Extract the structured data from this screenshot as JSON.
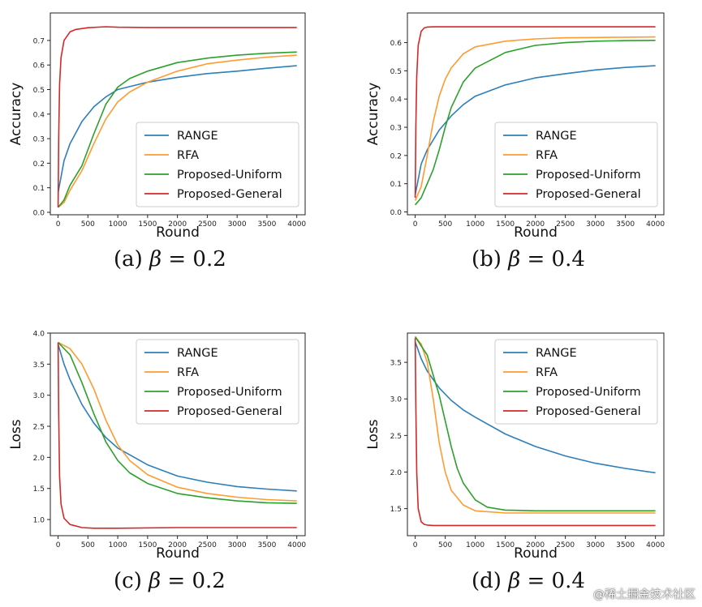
{
  "figure": {
    "watermark": "@稀土掘金技术社区",
    "colors": {
      "RANGE": "#2c7fb8",
      "RFA": "#ff9b30",
      "Proposed-Uniform": "#2ca02c",
      "Proposed-General": "#d62728"
    }
  },
  "chart_data": [
    {
      "id": "a",
      "type": "line",
      "caption": {
        "prefix": "(a)",
        "symbol": "β",
        "rest": " = 0.2"
      },
      "xlabel": "Round",
      "ylabel": "Accuracy",
      "xlim": [
        -130,
        4140
      ],
      "ylim": [
        -0.01,
        0.812
      ],
      "xticks": [
        0,
        500,
        1000,
        1500,
        2000,
        2500,
        3000,
        3500,
        4000
      ],
      "yticks": [
        0.0,
        0.1,
        0.2,
        0.3,
        0.4,
        0.5,
        0.6,
        0.7
      ],
      "ytick_labels": [
        "0.0",
        "0.1",
        "0.2",
        "0.3",
        "0.4",
        "0.5",
        "0.6",
        "0.7"
      ],
      "legend": "lower-right",
      "series": [
        {
          "name": "RANGE",
          "x": [
            0,
            100,
            200,
            400,
            600,
            800,
            1000,
            1500,
            2000,
            2500,
            3000,
            3500,
            4000
          ],
          "y": [
            0.08,
            0.21,
            0.28,
            0.37,
            0.43,
            0.47,
            0.5,
            0.53,
            0.55,
            0.565,
            0.575,
            0.587,
            0.597
          ]
        },
        {
          "name": "RFA",
          "x": [
            0,
            100,
            200,
            400,
            600,
            800,
            1000,
            1200,
            1500,
            2000,
            2500,
            3000,
            3500,
            4000
          ],
          "y": [
            0.02,
            0.04,
            0.09,
            0.17,
            0.28,
            0.38,
            0.45,
            0.49,
            0.53,
            0.575,
            0.605,
            0.62,
            0.632,
            0.64
          ]
        },
        {
          "name": "Proposed-Uniform",
          "x": [
            0,
            100,
            200,
            400,
            600,
            800,
            1000,
            1200,
            1500,
            2000,
            2500,
            3000,
            3500,
            4000
          ],
          "y": [
            0.02,
            0.05,
            0.11,
            0.19,
            0.32,
            0.44,
            0.51,
            0.545,
            0.575,
            0.61,
            0.628,
            0.64,
            0.648,
            0.653
          ]
        },
        {
          "name": "Proposed-General",
          "x": [
            0,
            10,
            25,
            50,
            100,
            200,
            300,
            500,
            800,
            1000,
            1500,
            2000,
            2500,
            3000,
            3500,
            4000
          ],
          "y": [
            0.02,
            0.3,
            0.52,
            0.63,
            0.7,
            0.735,
            0.745,
            0.752,
            0.756,
            0.754,
            0.753,
            0.753,
            0.753,
            0.753,
            0.753,
            0.753
          ]
        }
      ]
    },
    {
      "id": "b",
      "type": "line",
      "caption": {
        "prefix": "(b)",
        "symbol": "β",
        "rest": " = 0.4"
      },
      "xlabel": "Round",
      "ylabel": "Accuracy",
      "xlim": [
        -130,
        4140
      ],
      "ylim": [
        -0.01,
        0.705
      ],
      "xticks": [
        0,
        500,
        1000,
        1500,
        2000,
        2500,
        3000,
        3500,
        4000
      ],
      "yticks": [
        0.0,
        0.1,
        0.2,
        0.3,
        0.4,
        0.5,
        0.6
      ],
      "ytick_labels": [
        "0.0",
        "0.1",
        "0.2",
        "0.3",
        "0.4",
        "0.5",
        "0.6"
      ],
      "legend": "lower-right",
      "series": [
        {
          "name": "RANGE",
          "x": [
            0,
            100,
            200,
            400,
            600,
            800,
            1000,
            1500,
            2000,
            2500,
            3000,
            3500,
            4000
          ],
          "y": [
            0.06,
            0.17,
            0.22,
            0.29,
            0.34,
            0.38,
            0.41,
            0.45,
            0.475,
            0.49,
            0.503,
            0.512,
            0.518
          ]
        },
        {
          "name": "RFA",
          "x": [
            0,
            100,
            200,
            300,
            400,
            500,
            600,
            800,
            1000,
            1500,
            2000,
            2500,
            3000,
            3500,
            4000
          ],
          "y": [
            0.04,
            0.09,
            0.2,
            0.32,
            0.41,
            0.47,
            0.51,
            0.56,
            0.585,
            0.605,
            0.613,
            0.617,
            0.618,
            0.619,
            0.62
          ]
        },
        {
          "name": "Proposed-Uniform",
          "x": [
            0,
            100,
            200,
            300,
            400,
            500,
            600,
            800,
            1000,
            1500,
            2000,
            2500,
            3000,
            3500,
            4000
          ],
          "y": [
            0.025,
            0.05,
            0.1,
            0.15,
            0.22,
            0.3,
            0.37,
            0.46,
            0.51,
            0.565,
            0.59,
            0.6,
            0.605,
            0.607,
            0.608
          ]
        },
        {
          "name": "Proposed-General",
          "x": [
            0,
            10,
            25,
            50,
            100,
            150,
            200,
            300,
            500,
            1000,
            1500,
            2000,
            2500,
            3000,
            3500,
            4000
          ],
          "y": [
            0.05,
            0.3,
            0.48,
            0.59,
            0.64,
            0.652,
            0.655,
            0.656,
            0.656,
            0.656,
            0.656,
            0.656,
            0.656,
            0.656,
            0.656,
            0.656
          ]
        }
      ]
    },
    {
      "id": "c",
      "type": "line",
      "caption": {
        "prefix": "(c)",
        "symbol": "β",
        "rest": " = 0.2"
      },
      "xlabel": "Round",
      "ylabel": "Loss",
      "xlim": [
        -130,
        4140
      ],
      "ylim": [
        0.74,
        4.0
      ],
      "xticks": [
        0,
        500,
        1000,
        1500,
        2000,
        2500,
        3000,
        3500,
        4000
      ],
      "yticks": [
        1.0,
        1.5,
        2.0,
        2.5,
        3.0,
        3.5,
        4.0
      ],
      "ytick_labels": [
        "1.0",
        "1.5",
        "2.0",
        "2.5",
        "3.0",
        "3.5",
        "4.0"
      ],
      "legend": "upper-right",
      "series": [
        {
          "name": "RANGE",
          "x": [
            0,
            100,
            200,
            400,
            600,
            800,
            1000,
            1500,
            2000,
            2500,
            3000,
            3500,
            4000
          ],
          "y": [
            3.82,
            3.5,
            3.25,
            2.85,
            2.55,
            2.32,
            2.15,
            1.88,
            1.7,
            1.6,
            1.53,
            1.49,
            1.46
          ]
        },
        {
          "name": "RFA",
          "x": [
            0,
            200,
            400,
            600,
            800,
            1000,
            1200,
            1500,
            2000,
            2500,
            3000,
            3500,
            4000
          ],
          "y": [
            3.85,
            3.75,
            3.5,
            3.1,
            2.6,
            2.2,
            1.95,
            1.72,
            1.52,
            1.42,
            1.36,
            1.32,
            1.3
          ]
        },
        {
          "name": "Proposed-Uniform",
          "x": [
            0,
            200,
            400,
            600,
            800,
            1000,
            1200,
            1500,
            2000,
            2500,
            3000,
            3500,
            4000
          ],
          "y": [
            3.85,
            3.65,
            3.2,
            2.7,
            2.25,
            1.95,
            1.75,
            1.58,
            1.42,
            1.35,
            1.3,
            1.27,
            1.26
          ]
        },
        {
          "name": "Proposed-General",
          "x": [
            0,
            10,
            25,
            50,
            100,
            200,
            400,
            600,
            1000,
            2000,
            3000,
            4000
          ],
          "y": [
            3.85,
            2.7,
            1.7,
            1.25,
            1.02,
            0.92,
            0.87,
            0.86,
            0.86,
            0.87,
            0.87,
            0.87
          ]
        }
      ]
    },
    {
      "id": "d",
      "type": "line",
      "caption": {
        "prefix": "(d)",
        "symbol": "β",
        "rest": " = 0.4"
      },
      "xlabel": "Round",
      "ylabel": "Loss",
      "xlim": [
        -130,
        4140
      ],
      "ylim": [
        1.13,
        3.9
      ],
      "xticks": [
        0,
        500,
        1000,
        1500,
        2000,
        2500,
        3000,
        3500,
        4000
      ],
      "yticks": [
        1.5,
        2.0,
        2.5,
        3.0,
        3.5
      ],
      "ytick_labels": [
        "1.5",
        "2.0",
        "2.5",
        "3.0",
        "3.5"
      ],
      "legend": "upper-right",
      "series": [
        {
          "name": "RANGE",
          "x": [
            0,
            100,
            200,
            400,
            600,
            800,
            1000,
            1500,
            2000,
            2500,
            3000,
            3500,
            4000
          ],
          "y": [
            3.78,
            3.55,
            3.38,
            3.15,
            2.98,
            2.85,
            2.75,
            2.52,
            2.35,
            2.22,
            2.12,
            2.05,
            1.99
          ]
        },
        {
          "name": "RFA",
          "x": [
            0,
            100,
            200,
            300,
            400,
            500,
            600,
            800,
            1000,
            1500,
            2000,
            3000,
            4000
          ],
          "y": [
            3.85,
            3.75,
            3.5,
            3.0,
            2.4,
            2.0,
            1.75,
            1.55,
            1.47,
            1.44,
            1.44,
            1.44,
            1.44
          ]
        },
        {
          "name": "Proposed-Uniform",
          "x": [
            0,
            200,
            400,
            500,
            600,
            700,
            800,
            1000,
            1200,
            1500,
            2000,
            3000,
            4000
          ],
          "y": [
            3.85,
            3.6,
            3.05,
            2.7,
            2.35,
            2.05,
            1.85,
            1.62,
            1.52,
            1.48,
            1.47,
            1.47,
            1.47
          ]
        },
        {
          "name": "Proposed-General",
          "x": [
            0,
            10,
            25,
            50,
            100,
            150,
            200,
            300,
            500,
            1000,
            2000,
            3000,
            4000
          ],
          "y": [
            3.83,
            2.9,
            2.0,
            1.5,
            1.32,
            1.285,
            1.275,
            1.27,
            1.27,
            1.27,
            1.27,
            1.27,
            1.27
          ]
        }
      ]
    }
  ]
}
